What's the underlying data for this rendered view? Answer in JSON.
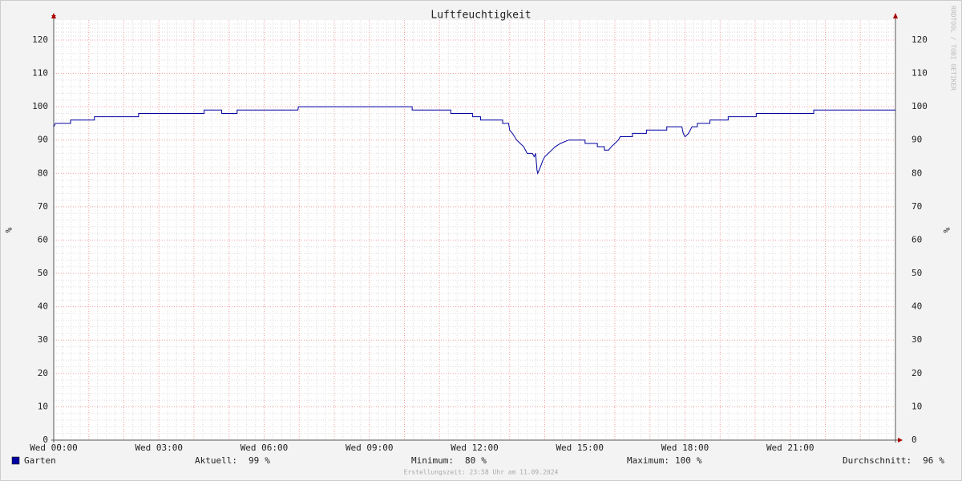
{
  "chart_data": {
    "type": "line",
    "title": "Luftfeuchtigkeit",
    "y_label": "%",
    "y2_label": "%",
    "watermark": "RRDTOOL / TOBI OETIKER",
    "xlim": [
      0,
      24
    ],
    "xticks": [
      {
        "value": 0,
        "label": "Wed 00:00"
      },
      {
        "value": 3,
        "label": "Wed 03:00"
      },
      {
        "value": 6,
        "label": "Wed 06:00"
      },
      {
        "value": 9,
        "label": "Wed 09:00"
      },
      {
        "value": 12,
        "label": "Wed 12:00"
      },
      {
        "value": 15,
        "label": "Wed 15:00"
      },
      {
        "value": 18,
        "label": "Wed 18:00"
      },
      {
        "value": 21,
        "label": "Wed 21:00"
      }
    ],
    "ylim": [
      0,
      126
    ],
    "yticks": [
      0,
      10,
      20,
      30,
      40,
      50,
      60,
      70,
      80,
      90,
      100,
      110,
      120
    ],
    "grid": true,
    "x": [
      0,
      0.05,
      0.48,
      0.48,
      1.16,
      1.16,
      2.42,
      2.42,
      4.29,
      4.29,
      4.79,
      4.79,
      5.23,
      5.23,
      6.96,
      6.98,
      10.22,
      10.22,
      11.32,
      11.32,
      11.94,
      11.94,
      12.17,
      12.17,
      12.8,
      12.8,
      12.97,
      13.0,
      13.08,
      13.2,
      13.3,
      13.4,
      13.5,
      13.65,
      13.7,
      13.74,
      13.78,
      13.8,
      13.88,
      13.95,
      14.0,
      14.1,
      14.2,
      14.3,
      14.45,
      14.68,
      15.15,
      15.15,
      15.5,
      15.5,
      15.7,
      15.7,
      15.82,
      15.9,
      16.0,
      16.1,
      16.15,
      16.5,
      16.5,
      16.9,
      16.9,
      17.48,
      17.48,
      17.91,
      17.95,
      18.0,
      18.1,
      18.2,
      18.35,
      18.35,
      18.71,
      18.71,
      19.23,
      19.23,
      20.03,
      20.03,
      21.67,
      21.67,
      24
    ],
    "series": [
      {
        "name": "Garten",
        "color": "#0000a0",
        "values": [
          94,
          95,
          95,
          96,
          96,
          97,
          97,
          98,
          98,
          99,
          99,
          98,
          98,
          99,
          99,
          100,
          100,
          99,
          99,
          98,
          98,
          97,
          97,
          96,
          96,
          95,
          95,
          93,
          92,
          90,
          89,
          88,
          86,
          86,
          85,
          86,
          81,
          80,
          82,
          84,
          85,
          86,
          87,
          88,
          89,
          90,
          90,
          89,
          89,
          88,
          88,
          87,
          87,
          88,
          89,
          90,
          91,
          91,
          92,
          92,
          93,
          93,
          94,
          94,
          92,
          91,
          92,
          94,
          94,
          95,
          95,
          96,
          96,
          97,
          97,
          98,
          98,
          99,
          99
        ]
      }
    ],
    "stats": [
      {
        "label": "Aktuell:",
        "value": 99,
        "unit": "%"
      },
      {
        "label": "Minimum:",
        "value": 80,
        "unit": "%"
      },
      {
        "label": "Maximum:",
        "value": 100,
        "unit": "%"
      },
      {
        "label": "Durchschnitt:",
        "value": 96,
        "unit": "%"
      }
    ],
    "footer": "Erstellungszeit: 23:58 Uhr am 11.09.2024"
  }
}
